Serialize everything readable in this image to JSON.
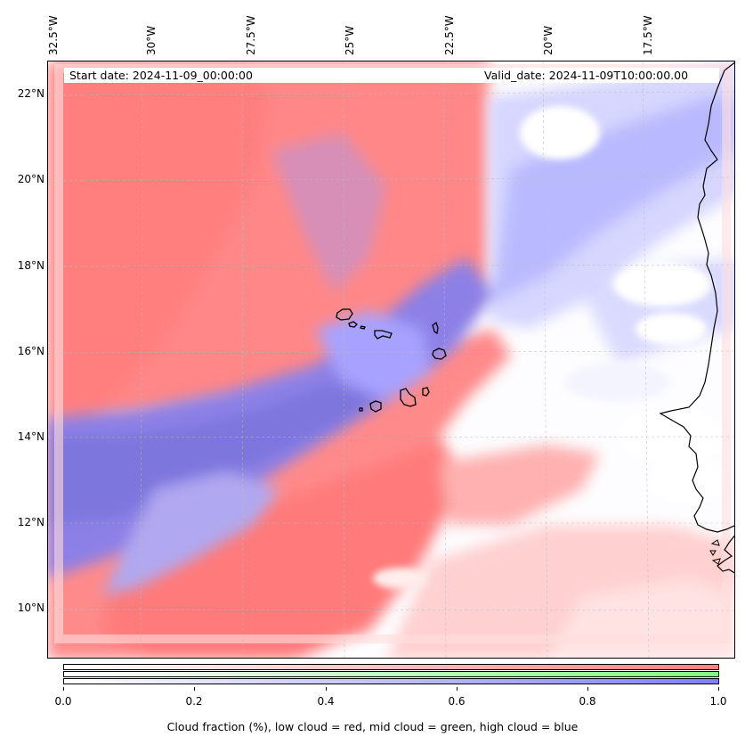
{
  "map": {
    "start_date": "Start date: 2024-11-09_00:00:00",
    "valid_date": "Valid_date: 2024-11-09T10:00:00.00",
    "lon_labels": [
      "32.5°W",
      "30°W",
      "27.5°W",
      "25°W",
      "22.5°W",
      "20°W",
      "17.5°W"
    ],
    "lat_labels": [
      "22°N",
      "20°N",
      "18°N",
      "16°N",
      "14°N",
      "12°N",
      "10°N"
    ]
  },
  "colorbar": {
    "ticks": [
      "0.0",
      "0.2",
      "0.4",
      "0.6",
      "0.8",
      "1.0"
    ],
    "caption": "Cloud fraction (%), low cloud = red, mid cloud = green, high cloud = blue",
    "colors": {
      "low": "#ff7f7f",
      "mid": "#7fff7f",
      "high": "#7f7fff"
    }
  }
}
